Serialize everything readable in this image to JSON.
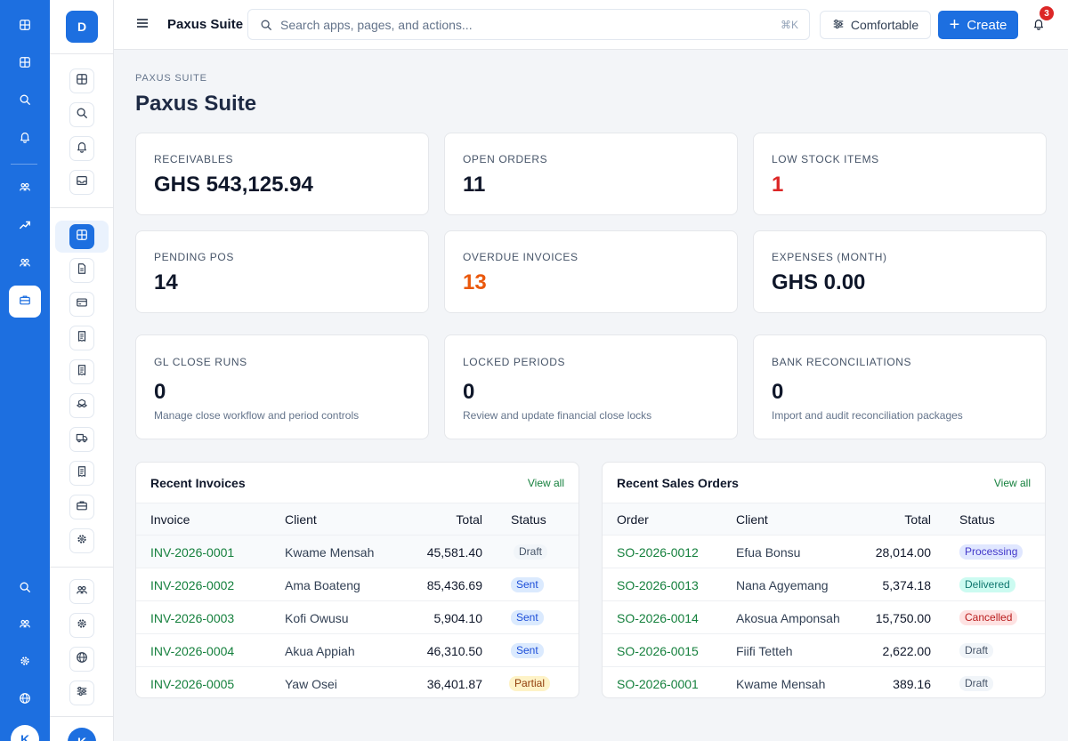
{
  "rail": {
    "avatar_initial": "K"
  },
  "sidebar": {
    "logo_initial": "D",
    "avatar_initial": "K"
  },
  "topbar": {
    "app_name": "Paxus Suite",
    "search_placeholder": "Search apps, pages, and actions...",
    "search_shortcut": "⌘K",
    "density_label": "Comfortable",
    "create_label": "Create",
    "notification_count": "3"
  },
  "page": {
    "eyebrow": "PAXUS SUITE",
    "title": "Paxus Suite"
  },
  "kpis": [
    {
      "label": "RECEIVABLES",
      "value": "GHS 543,125.94",
      "color": "#0f172a"
    },
    {
      "label": "OPEN ORDERS",
      "value": "11",
      "color": "#0f172a"
    },
    {
      "label": "LOW STOCK ITEMS",
      "value": "1",
      "color": "#dc2626"
    },
    {
      "label": "PENDING POS",
      "value": "14",
      "color": "#0f172a"
    },
    {
      "label": "OVERDUE INVOICES",
      "value": "13",
      "color": "#ea580c"
    },
    {
      "label": "EXPENSES (MONTH)",
      "value": "GHS 0.00",
      "color": "#0f172a"
    },
    {
      "label": "GL CLOSE RUNS",
      "value": "0",
      "desc": "Manage close workflow and period controls",
      "color": "#0f172a"
    },
    {
      "label": "LOCKED PERIODS",
      "value": "0",
      "desc": "Review and update financial close locks",
      "color": "#0f172a"
    },
    {
      "label": "BANK RECONCILIATIONS",
      "value": "0",
      "desc": "Import and audit reconciliation packages",
      "color": "#0f172a"
    }
  ],
  "invoices": {
    "title": "Recent Invoices",
    "view_all": "View all",
    "columns": [
      "Invoice",
      "Client",
      "Total",
      "Status"
    ],
    "rows": [
      {
        "id": "INV-2026-0001",
        "client": "Kwame Mensah",
        "total": "45,581.40",
        "status": "Draft"
      },
      {
        "id": "INV-2026-0002",
        "client": "Ama Boateng",
        "total": "85,436.69",
        "status": "Sent"
      },
      {
        "id": "INV-2026-0003",
        "client": "Kofi Owusu",
        "total": "5,904.10",
        "status": "Sent"
      },
      {
        "id": "INV-2026-0004",
        "client": "Akua Appiah",
        "total": "46,310.50",
        "status": "Sent"
      },
      {
        "id": "INV-2026-0005",
        "client": "Yaw Osei",
        "total": "36,401.87",
        "status": "Partial"
      }
    ]
  },
  "orders": {
    "title": "Recent Sales Orders",
    "view_all": "View all",
    "columns": [
      "Order",
      "Client",
      "Total",
      "Status"
    ],
    "rows": [
      {
        "id": "SO-2026-0012",
        "client": "Efua Bonsu",
        "total": "28,014.00",
        "status": "Processing"
      },
      {
        "id": "SO-2026-0013",
        "client": "Nana Agyemang",
        "total": "5,374.18",
        "status": "Delivered"
      },
      {
        "id": "SO-2026-0014",
        "client": "Akosua Amponsah",
        "total": "15,750.00",
        "status": "Cancelled"
      },
      {
        "id": "SO-2026-0015",
        "client": "Fiifi Tetteh",
        "total": "2,622.00",
        "status": "Draft"
      },
      {
        "id": "SO-2026-0001",
        "client": "Kwame Mensah",
        "total": "389.16",
        "status": "Draft"
      }
    ]
  },
  "status_colors": {
    "Draft": {
      "bg": "#f1f5f9",
      "fg": "#475569"
    },
    "Sent": {
      "bg": "#dbeafe",
      "fg": "#1d4ed8"
    },
    "Partial": {
      "bg": "#fef3c7",
      "fg": "#92400e"
    },
    "Processing": {
      "bg": "#e0e7ff",
      "fg": "#4338ca"
    },
    "Delivered": {
      "bg": "#ccfbf1",
      "fg": "#0f766e"
    },
    "Cancelled": {
      "bg": "#fee2e2",
      "fg": "#b91c1c"
    }
  }
}
